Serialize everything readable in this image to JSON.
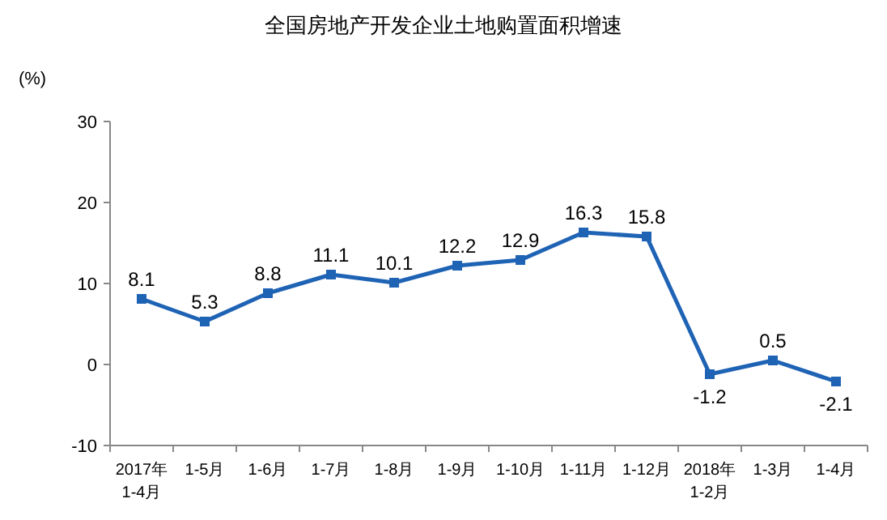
{
  "chart_data": {
    "type": "line",
    "title": "全国房地产开发企业土地购置面积增速",
    "ylabel": "(%)",
    "categories": [
      "2017年\n1-4月",
      "1-5月",
      "1-6月",
      "1-7月",
      "1-8月",
      "1-9月",
      "1-10月",
      "1-11月",
      "1-12月",
      "2018年\n1-2月",
      "1-3月",
      "1-4月"
    ],
    "series": [
      {
        "color": "#1f63b5",
        "values": [
          8.1,
          5.3,
          8.8,
          11.1,
          10.1,
          12.2,
          12.9,
          16.3,
          15.8,
          -1.2,
          0.5,
          -2.1
        ]
      }
    ],
    "ylim": [
      -10,
      30
    ],
    "yticks": [
      -10,
      0,
      10,
      20,
      30
    ],
    "data_labels": true,
    "marker": "square"
  }
}
